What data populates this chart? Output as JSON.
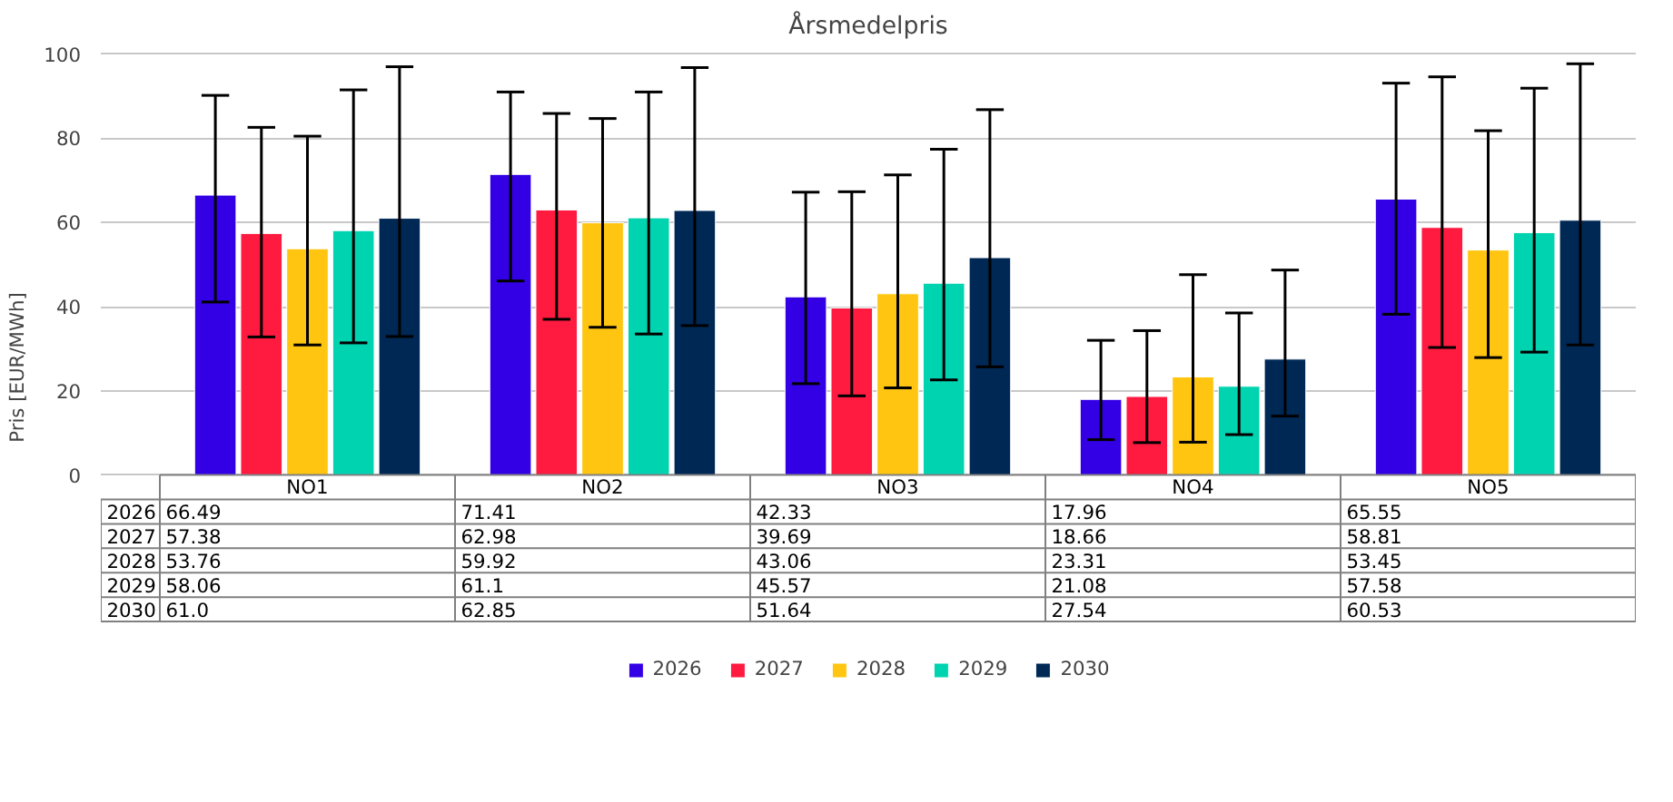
{
  "chart_data": {
    "type": "bar",
    "title": "Årsmedelpris",
    "ylabel": "Pris [EUR/MWh]",
    "categories": [
      "NO1",
      "NO2",
      "NO3",
      "NO4",
      "NO5"
    ],
    "ylim": [
      0,
      100
    ],
    "yticks": [
      0,
      20,
      40,
      60,
      80,
      100
    ],
    "grid": "y",
    "legend": "bottom",
    "series": [
      {
        "name": "2026",
        "color": "#3300e6",
        "values": [
          66.49,
          71.41,
          42.33,
          17.96,
          65.55
        ],
        "value_labels": [
          "66.49",
          "71.41",
          "42.33",
          "17.96",
          "65.55"
        ],
        "errors": [
          [
            41.1,
            90.2
          ],
          [
            46.1,
            91.0
          ],
          [
            21.7,
            67.2
          ],
          [
            8.4,
            32.0
          ],
          [
            38.2,
            93.1
          ]
        ]
      },
      {
        "name": "2027",
        "color": "#ff1a40",
        "values": [
          57.38,
          62.98,
          39.69,
          18.66,
          58.81
        ],
        "value_labels": [
          "57.38",
          "62.98",
          "39.69",
          "18.66",
          "58.81"
        ],
        "errors": [
          [
            32.8,
            82.6
          ],
          [
            37.0,
            85.9
          ],
          [
            18.8,
            67.3
          ],
          [
            7.7,
            34.3
          ],
          [
            30.3,
            94.6
          ]
        ]
      },
      {
        "name": "2028",
        "color": "#ffc511",
        "values": [
          53.76,
          59.92,
          43.06,
          23.31,
          53.45
        ],
        "value_labels": [
          "53.76",
          "59.92",
          "43.06",
          "23.31",
          "53.45"
        ],
        "errors": [
          [
            30.9,
            80.5
          ],
          [
            35.1,
            84.7
          ],
          [
            20.7,
            71.3
          ],
          [
            7.8,
            47.6
          ],
          [
            27.9,
            81.8
          ]
        ]
      },
      {
        "name": "2029",
        "color": "#00d3b0",
        "values": [
          58.06,
          61.1,
          45.57,
          21.08,
          57.58
        ],
        "value_labels": [
          "58.06",
          "61.1",
          "45.57",
          "21.08",
          "57.58"
        ],
        "errors": [
          [
            31.4,
            91.5
          ],
          [
            33.5,
            91.0
          ],
          [
            22.6,
            77.4
          ],
          [
            9.6,
            38.5
          ],
          [
            29.2,
            91.9
          ]
        ]
      },
      {
        "name": "2030",
        "color": "#002855",
        "values": [
          61.0,
          62.85,
          51.64,
          27.54,
          60.53
        ],
        "value_labels": [
          "61.0",
          "62.85",
          "51.64",
          "27.54",
          "60.53"
        ],
        "errors": [
          [
            32.9,
            97.0
          ],
          [
            35.5,
            96.8
          ],
          [
            25.7,
            86.8
          ],
          [
            14.0,
            48.7
          ],
          [
            30.9,
            97.7
          ]
        ]
      }
    ]
  }
}
